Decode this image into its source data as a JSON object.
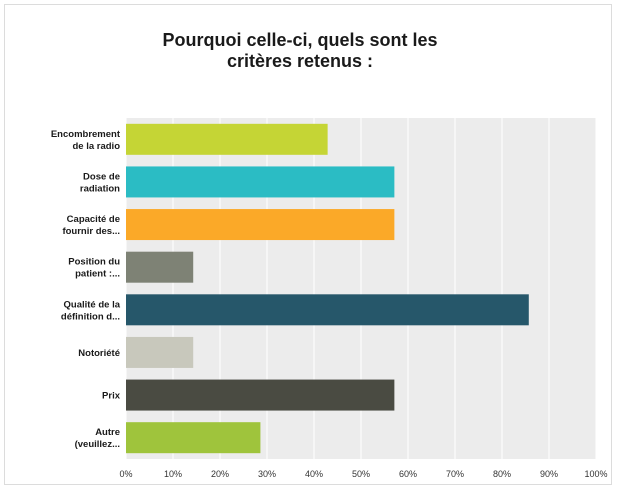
{
  "chart_data": {
    "type": "bar",
    "orientation": "horizontal",
    "title": "Pourquoi celle-ci, quels sont les\ncritères retenus :",
    "categories": [
      [
        "Encombrement",
        "de la radio"
      ],
      [
        "Dose de",
        "radiation"
      ],
      [
        "Capacité de",
        "fournir des..."
      ],
      [
        "Position du",
        "patient :..."
      ],
      [
        "Qualité de la",
        "définition d..."
      ],
      [
        "Notoriété"
      ],
      [
        "Prix"
      ],
      [
        "Autre",
        "(veuillez..."
      ]
    ],
    "values": [
      42.9,
      57.1,
      57.1,
      14.3,
      85.7,
      14.3,
      57.1,
      28.6
    ],
    "colors": [
      "#c5d535",
      "#2bbcc4",
      "#fba928",
      "#7e8275",
      "#26576a",
      "#c8c8bc",
      "#4a4b42",
      "#9fc43c"
    ],
    "xlim": [
      0,
      100
    ],
    "xticks": [
      "0%",
      "10%",
      "20%",
      "30%",
      "40%",
      "50%",
      "60%",
      "70%",
      "80%",
      "90%",
      "100%"
    ],
    "grid": true,
    "legend": "none"
  }
}
